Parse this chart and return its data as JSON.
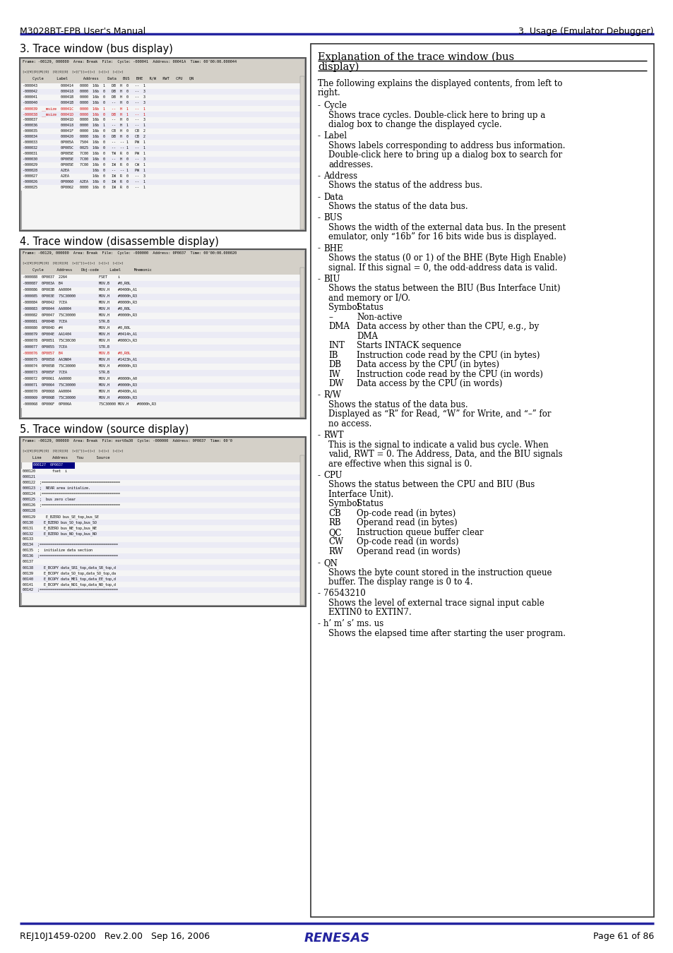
{
  "header_left": "M3028BT-EPB User's Manual",
  "header_right": "3. Usage (Emulator Debugger)",
  "footer_left": "REJ10J1459-0200   Rev.2.00   Sep 16, 2006",
  "footer_right": "Page 61 of 86",
  "header_line_color": "#2424a0",
  "footer_line_color": "#2424a0",
  "renesas_color": "#2424a0",
  "section1_title": "3. Trace window (bus display)",
  "section2_title": "4. Trace window (disassemble display)",
  "section3_title": "5. Trace window (source display)",
  "exp_title_line1": "Explanation of the trace window (bus",
  "exp_title_line2": "display)",
  "bg_color": "#ffffff",
  "text_color": "#000000",
  "toolbar_color": "#d4d0c8",
  "screenshot_bg": "#f0f0f0",
  "screenshot_border": "#666666",
  "red_color": "#cc0000"
}
